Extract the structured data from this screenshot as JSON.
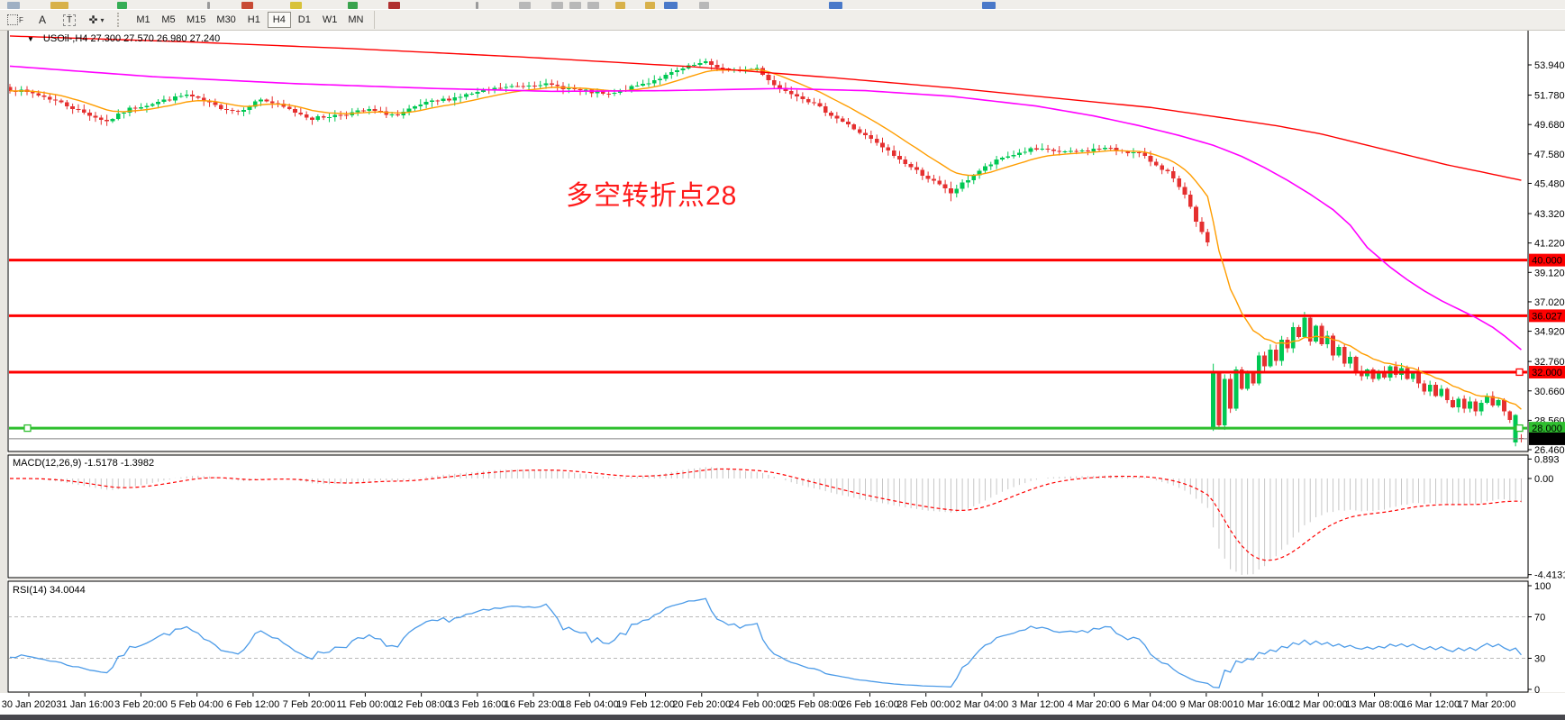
{
  "toolbar": {
    "tools": [
      {
        "id": "grid",
        "glyph": "F"
      },
      {
        "id": "text-label",
        "glyph": "A"
      },
      {
        "id": "text-box",
        "glyph": "T"
      },
      {
        "id": "objects",
        "glyph": "✜",
        "caret": "▾"
      }
    ],
    "timeframes": [
      {
        "label": "M1",
        "active": false
      },
      {
        "label": "M5",
        "active": false
      },
      {
        "label": "M15",
        "active": false
      },
      {
        "label": "M30",
        "active": false
      },
      {
        "label": "H1",
        "active": false
      },
      {
        "label": "H4",
        "active": true
      },
      {
        "label": "D1",
        "active": false
      },
      {
        "label": "W1",
        "active": false
      },
      {
        "label": "MN",
        "active": false
      }
    ],
    "top_fragments": [
      [
        8,
        14,
        "#9fb0c4"
      ],
      [
        56,
        20,
        "#d8b14a"
      ],
      [
        130,
        11,
        "#35ad55"
      ],
      [
        230,
        3,
        "#9a9a9a"
      ],
      [
        268,
        13,
        "#c84a35"
      ],
      [
        322,
        13,
        "#d8c23a"
      ],
      [
        386,
        11,
        "#3aa34d"
      ],
      [
        431,
        13,
        "#b03030"
      ],
      [
        528,
        3,
        "#9a9a9a"
      ],
      [
        576,
        13,
        "#b8b8b8"
      ],
      [
        612,
        13,
        "#b8b8b8"
      ],
      [
        632,
        13,
        "#b8b8b8"
      ],
      [
        652,
        13,
        "#b8b8b8"
      ],
      [
        683,
        11,
        "#d8b14a"
      ],
      [
        716,
        11,
        "#d8b14a"
      ],
      [
        737,
        15,
        "#4a79c9"
      ],
      [
        776,
        11,
        "#b8b8b8"
      ],
      [
        920,
        15,
        "#4a79c9"
      ],
      [
        1090,
        15,
        "#4a79c9"
      ]
    ]
  },
  "chart": {
    "title": "USOil-,H4  27.300 27.570 26.980 27.240",
    "symbol_caret": "▼",
    "annotation": {
      "text": "多空转折点28",
      "color": "#ff1a1a"
    },
    "price_axis_labels": [
      53.94,
      51.78,
      49.68,
      47.58,
      45.48,
      43.32,
      41.22,
      39.12,
      37.02,
      34.92,
      32.76,
      30.66,
      28.56,
      26.46
    ],
    "time_axis_labels": [
      "30 Jan 2020",
      "31 Jan 16:00",
      "3 Feb 20:00",
      "5 Feb 04:00",
      "6 Feb 12:00",
      "7 Feb 20:00",
      "11 Feb 00:00",
      "12 Feb 08:00",
      "13 Feb 16:00",
      "16 Feb 23:00",
      "18 Feb 04:00",
      "19 Feb 12:00",
      "20 Feb 20:00",
      "24 Feb 00:00",
      "25 Feb 08:00",
      "26 Feb 16:00",
      "28 Feb 00:00",
      "2 Mar 04:00",
      "3 Mar 12:00",
      "4 Mar 20:00",
      "6 Mar 04:00",
      "9 Mar 08:00",
      "10 Mar 16:00",
      "12 Mar 00:00",
      "13 Mar 08:00",
      "16 Mar 12:00",
      "17 Mar 20:00"
    ],
    "hlines": [
      {
        "price": 40.0,
        "label": "40.000",
        "color": "#fe0000",
        "thickness": 3,
        "marker_left": false,
        "marker_right": false
      },
      {
        "price": 36.027,
        "label": "36.027",
        "color": "#fe0000",
        "thickness": 3,
        "marker_left": false,
        "marker_right": false
      },
      {
        "price": 32.0,
        "label": "32.000",
        "color": "#fe0000",
        "thickness": 3,
        "marker_left": false,
        "marker_right": true
      },
      {
        "price": 28.0,
        "label": "28.000",
        "color": "#2fbf2f",
        "thickness": 3,
        "marker_left": true,
        "marker_right": true
      }
    ],
    "current_price": {
      "value": 27.24,
      "label": "27.240",
      "line_color": "#808080",
      "badge_color": "#000000"
    }
  },
  "chart_data": {
    "type": "candlestick",
    "symbol": "USOil-",
    "timeframe": "H4",
    "ohlc_current": {
      "open": 27.3,
      "high": 27.57,
      "low": 26.98,
      "close": 27.24
    },
    "candle_count": 266,
    "seed": 7,
    "close_waypoints": [
      [
        0,
        52.2
      ],
      [
        4,
        51.9
      ],
      [
        8,
        51.4
      ],
      [
        12,
        50.7
      ],
      [
        17,
        49.9
      ],
      [
        21,
        50.8
      ],
      [
        25,
        51.2
      ],
      [
        31,
        51.8
      ],
      [
        36,
        51.0
      ],
      [
        40,
        50.6
      ],
      [
        44,
        51.5
      ],
      [
        48,
        50.9
      ],
      [
        53,
        50.1
      ],
      [
        58,
        50.4
      ],
      [
        63,
        50.7
      ],
      [
        68,
        50.3
      ],
      [
        72,
        51.1
      ],
      [
        79,
        51.7
      ],
      [
        86,
        52.3
      ],
      [
        93,
        52.6
      ],
      [
        100,
        52.1
      ],
      [
        105,
        51.8
      ],
      [
        112,
        52.7
      ],
      [
        119,
        53.8
      ],
      [
        122,
        54.1
      ],
      [
        126,
        53.5
      ],
      [
        131,
        53.7
      ],
      [
        134,
        52.5
      ],
      [
        139,
        51.6
      ],
      [
        146,
        49.9
      ],
      [
        151,
        48.6
      ],
      [
        157,
        46.9
      ],
      [
        162,
        45.6
      ],
      [
        165,
        44.8
      ],
      [
        170,
        46.4
      ],
      [
        174,
        47.3
      ],
      [
        179,
        47.9
      ],
      [
        186,
        47.7
      ],
      [
        192,
        48.0
      ],
      [
        198,
        47.6
      ],
      [
        203,
        46.3
      ],
      [
        206,
        44.6
      ],
      [
        209,
        41.9
      ],
      [
        210,
        41.3
      ],
      [
        211,
        31.9
      ],
      [
        212,
        28.2
      ],
      [
        213,
        31.5
      ],
      [
        214,
        29.4
      ],
      [
        215,
        32.2
      ],
      [
        216,
        30.8
      ],
      [
        217,
        31.9
      ],
      [
        218,
        31.2
      ],
      [
        219,
        33.2
      ],
      [
        220,
        32.4
      ],
      [
        221,
        33.6
      ],
      [
        222,
        32.8
      ],
      [
        223,
        34.3
      ],
      [
        224,
        33.7
      ],
      [
        225,
        35.2
      ],
      [
        226,
        34.5
      ],
      [
        227,
        35.9
      ],
      [
        228,
        34.2
      ],
      [
        229,
        35.3
      ],
      [
        230,
        34.0
      ],
      [
        231,
        34.6
      ],
      [
        232,
        33.2
      ],
      [
        233,
        33.8
      ],
      [
        234,
        32.6
      ],
      [
        235,
        33.1
      ],
      [
        236,
        32.1
      ],
      [
        237,
        31.7
      ],
      [
        238,
        32.2
      ],
      [
        239,
        31.5
      ],
      [
        240,
        32.1
      ],
      [
        241,
        31.6
      ],
      [
        242,
        32.4
      ],
      [
        243,
        31.8
      ],
      [
        244,
        32.3
      ],
      [
        245,
        31.5
      ],
      [
        246,
        32.0
      ],
      [
        247,
        31.2
      ],
      [
        248,
        30.6
      ],
      [
        249,
        31.1
      ],
      [
        250,
        30.3
      ],
      [
        251,
        30.8
      ],
      [
        252,
        30.0
      ],
      [
        253,
        29.5
      ],
      [
        254,
        30.1
      ],
      [
        255,
        29.4
      ],
      [
        256,
        29.9
      ],
      [
        257,
        29.2
      ],
      [
        258,
        29.8
      ],
      [
        259,
        30.3
      ],
      [
        260,
        29.6
      ],
      [
        261,
        30.0
      ],
      [
        262,
        29.2
      ],
      [
        263,
        28.6
      ],
      [
        264,
        28.95
      ],
      [
        265,
        27.24
      ]
    ],
    "open_overrides": {
      "0": 52.35,
      "211": 28.0,
      "264": 26.99,
      "265": 27.3
    },
    "high_overrides": {
      "122": 54.4,
      "165": 45.6,
      "211": 32.6,
      "227": 36.3,
      "264": 29.0,
      "265": 27.57
    },
    "low_overrides": {
      "165": 44.2,
      "211": 27.8,
      "212": 27.9,
      "264": 26.7,
      "265": 26.98
    },
    "ma_red_waypoints": [
      [
        0,
        56.0
      ],
      [
        30,
        55.6
      ],
      [
        60,
        55.1
      ],
      [
        90,
        54.5
      ],
      [
        120,
        53.8
      ],
      [
        145,
        53.0
      ],
      [
        165,
        52.3
      ],
      [
        185,
        51.5
      ],
      [
        200,
        50.9
      ],
      [
        212,
        50.2
      ],
      [
        222,
        49.6
      ],
      [
        230,
        49.0
      ],
      [
        238,
        48.2
      ],
      [
        245,
        47.5
      ],
      [
        252,
        46.8
      ],
      [
        258,
        46.3
      ],
      [
        265,
        45.7
      ]
    ],
    "ma_magenta_waypoints": [
      [
        0,
        53.85
      ],
      [
        25,
        53.1
      ],
      [
        50,
        52.6
      ],
      [
        75,
        52.25
      ],
      [
        95,
        52.05
      ],
      [
        115,
        52.1
      ],
      [
        135,
        52.25
      ],
      [
        150,
        52.1
      ],
      [
        165,
        51.7
      ],
      [
        180,
        51.0
      ],
      [
        190,
        50.3
      ],
      [
        198,
        49.6
      ],
      [
        205,
        48.9
      ],
      [
        211,
        48.2
      ],
      [
        216,
        47.4
      ],
      [
        220,
        46.6
      ],
      [
        224,
        45.7
      ],
      [
        228,
        44.7
      ],
      [
        232,
        43.6
      ],
      [
        235,
        42.5
      ],
      [
        238,
        40.9
      ],
      [
        240,
        40.2
      ],
      [
        242,
        39.5
      ],
      [
        245,
        38.6
      ],
      [
        248,
        37.8
      ],
      [
        251,
        37.1
      ],
      [
        254,
        36.5
      ],
      [
        257,
        35.9
      ],
      [
        260,
        35.2
      ],
      [
        262,
        34.6
      ],
      [
        265,
        33.6
      ]
    ],
    "ma_orange_period": 13,
    "indicators": {
      "macd": {
        "full_label": "MACD(12,26,9) -1.5178 -1.3982",
        "fast": 12,
        "slow": 26,
        "signal": 9,
        "main_value": -1.5178,
        "signal_value": -1.3982,
        "axis_labels": [
          {
            "v": 0.893,
            "t": "0.893"
          },
          {
            "v": 0.0,
            "t": "0.00"
          },
          {
            "v": -4.4131,
            "t": "-4.4131"
          }
        ]
      },
      "rsi": {
        "full_label": "RSI(14) 34.0044",
        "period": 14,
        "value": 34.0044,
        "axis_labels": [
          {
            "v": 100,
            "t": "100"
          },
          {
            "v": 70,
            "t": "70"
          },
          {
            "v": 30,
            "t": "30"
          },
          {
            "v": 0,
            "t": "0"
          }
        ],
        "levels": [
          70,
          30
        ]
      }
    },
    "colors": {
      "bull": "#00c853",
      "bear": "#e53030",
      "ma_orange": "#ff9d00",
      "ma_magenta": "#ff00ff",
      "ma_red": "#fe0000",
      "macd_bar": "#c6c6c6",
      "macd_signal": "#ff0000",
      "rsi_line": "#4c9be8",
      "level_dash": "#b9b9b9",
      "axis_text": "#000000",
      "panel_bg": "#ffffff"
    }
  }
}
